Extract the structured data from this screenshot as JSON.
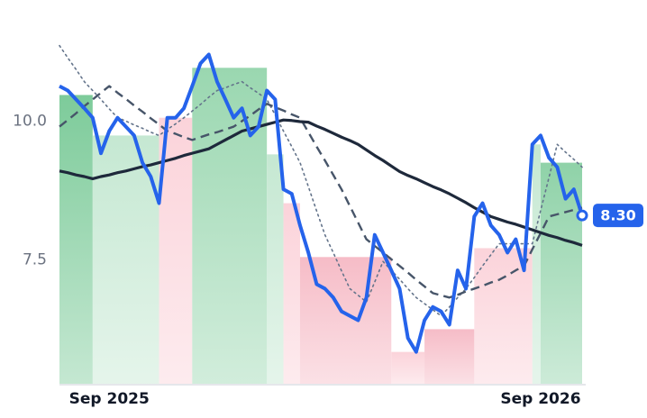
{
  "chart_data": {
    "type": "line",
    "categories": [
      null,
      null,
      null,
      null,
      null,
      null,
      "Sep 2025",
      null,
      null,
      null,
      null,
      null,
      null,
      null,
      null,
      null,
      null,
      null,
      null,
      null,
      null,
      null,
      null,
      null,
      null,
      null,
      null,
      null,
      null,
      null,
      null,
      null,
      null,
      null,
      null,
      null,
      null,
      null,
      null,
      null,
      null,
      null,
      null,
      null,
      null,
      null,
      null,
      null,
      null,
      null,
      null,
      null,
      null,
      null,
      null,
      null,
      null,
      null,
      "Sep 2026",
      null,
      null,
      null,
      null,
      null
    ],
    "ylim": [
      5.25,
      11.5
    ],
    "yticks": [
      7.5,
      {
        "value": 10,
        "label": "10.0"
      }
    ],
    "grid": false,
    "bars": {
      "edges": [
        0,
        4,
        12,
        16,
        25,
        27,
        29,
        40,
        44,
        50,
        57,
        58,
        63
      ],
      "values": [
        10.47,
        9.74,
        10.06,
        10.96,
        9.4,
        8.52,
        7.55,
        5.84,
        6.25,
        7.71,
        9.58,
        9.25
      ],
      "colors": [
        "#7dcb9a",
        "#c5e8d2",
        "#fbd3da",
        "#9ad7b0",
        "#c5e8d2",
        "#fbd3da",
        "#f6bcc7",
        "#fbd3da",
        "#f6bcc7",
        "#fbd3da",
        "#c5e8d2",
        "#8fd2a8"
      ]
    },
    "series": [
      {
        "color": "#64748b",
        "style": "dotted",
        "width": 1.6,
        "values": [
          11.36,
          11.14,
          10.93,
          10.71,
          10.55,
          10.39,
          10.22,
          10.06,
          10.0,
          9.93,
          9.87,
          9.8,
          9.74,
          9.85,
          9.95,
          10.06,
          10.18,
          10.3,
          10.43,
          10.55,
          10.6,
          10.66,
          10.71,
          10.6,
          10.5,
          10.39,
          10.11,
          9.82,
          9.54,
          9.25,
          8.82,
          8.38,
          7.95,
          7.63,
          7.3,
          6.98,
          6.86,
          6.74,
          7.1,
          7.47,
          7.31,
          7.15,
          6.98,
          6.82,
          6.71,
          6.6,
          6.49,
          6.65,
          6.82,
          6.98,
          7.18,
          7.39,
          7.59,
          7.79,
          7.79,
          7.79,
          7.79,
          7.79,
          8.39,
          8.98,
          9.58,
          9.44,
          9.31,
          9.17
        ]
      },
      {
        "color": "#475569",
        "style": "dashed",
        "width": 2.4,
        "values": [
          9.9,
          10.02,
          10.14,
          10.27,
          10.39,
          10.51,
          10.63,
          10.51,
          10.4,
          10.28,
          10.17,
          10.05,
          9.94,
          9.82,
          9.77,
          9.71,
          9.66,
          9.71,
          9.76,
          9.8,
          9.85,
          9.9,
          10.0,
          10.1,
          10.21,
          10.31,
          10.25,
          10.19,
          10.12,
          10.06,
          9.8,
          9.54,
          9.29,
          9.03,
          8.77,
          8.47,
          8.17,
          7.87,
          7.75,
          7.63,
          7.51,
          7.39,
          7.27,
          7.14,
          7.02,
          6.9,
          6.86,
          6.82,
          6.87,
          6.93,
          6.98,
          7.03,
          7.09,
          7.14,
          7.22,
          7.31,
          7.39,
          7.69,
          7.98,
          8.28,
          8.32,
          8.36,
          8.4,
          8.44
        ]
      },
      {
        "color": "#1e293b",
        "style": "solid",
        "width": 3.2,
        "values": [
          9.1,
          9.07,
          9.03,
          9.0,
          8.96,
          9.0,
          9.03,
          9.07,
          9.1,
          9.14,
          9.18,
          9.21,
          9.25,
          9.29,
          9.33,
          9.38,
          9.42,
          9.46,
          9.5,
          9.58,
          9.66,
          9.74,
          9.82,
          9.86,
          9.9,
          9.94,
          9.98,
          10.02,
          10.01,
          9.99,
          9.98,
          9.91,
          9.85,
          9.78,
          9.71,
          9.65,
          9.58,
          9.48,
          9.38,
          9.29,
          9.19,
          9.09,
          9.02,
          8.96,
          8.89,
          8.82,
          8.76,
          8.69,
          8.61,
          8.53,
          8.44,
          8.36,
          8.28,
          8.23,
          8.18,
          8.14,
          8.09,
          8.04,
          7.99,
          7.94,
          7.9,
          7.85,
          7.81,
          7.76
        ]
      },
      {
        "color": "#2563eb",
        "style": "solid",
        "width": 4,
        "values": [
          10.63,
          10.55,
          10.39,
          10.23,
          10.06,
          9.42,
          9.82,
          10.06,
          9.9,
          9.74,
          9.25,
          9.0,
          8.52,
          10.06,
          10.06,
          10.23,
          10.63,
          11.04,
          11.2,
          10.71,
          10.39,
          10.06,
          10.23,
          9.74,
          9.9,
          10.55,
          10.39,
          8.77,
          8.69,
          8.12,
          7.63,
          7.06,
          6.98,
          6.82,
          6.57,
          6.49,
          6.41,
          6.82,
          7.95,
          7.63,
          7.31,
          6.98,
          6.09,
          5.84,
          6.41,
          6.65,
          6.57,
          6.33,
          7.31,
          6.98,
          8.28,
          8.52,
          8.12,
          7.95,
          7.63,
          7.87,
          7.31,
          9.58,
          9.74,
          9.34,
          9.17,
          8.6,
          8.77,
          8.3
        ],
        "value_labels": [
          null,
          null,
          null,
          null,
          null,
          null,
          null,
          null,
          null,
          null,
          null,
          null,
          null,
          null,
          null,
          null,
          null,
          null,
          null,
          null,
          null,
          null,
          null,
          null,
          null,
          null,
          null,
          null,
          null,
          null,
          null,
          null,
          null,
          null,
          null,
          null,
          null,
          null,
          null,
          null,
          null,
          null,
          null,
          null,
          null,
          null,
          null,
          null,
          null,
          null,
          null,
          null,
          null,
          null,
          null,
          null,
          null,
          null,
          null,
          null,
          null,
          null,
          null,
          "8.30"
        ]
      }
    ]
  }
}
